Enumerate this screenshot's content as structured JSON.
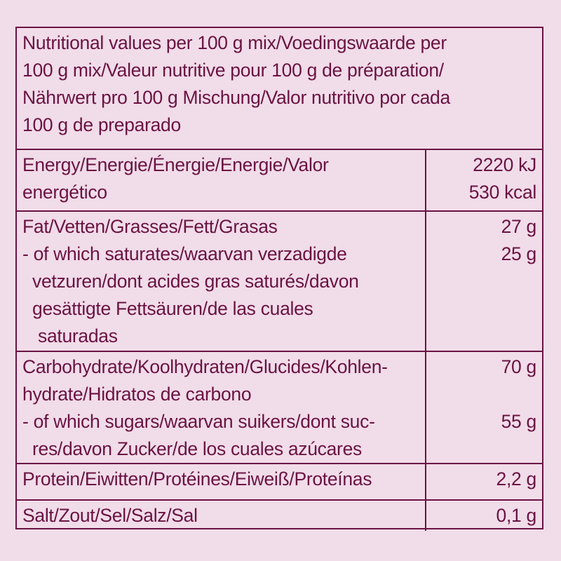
{
  "header": {
    "lines": [
      "Nutritional values per 100 g mix/Voedingswaarde per",
      "100 g mix/Valeur nutritive pour 100 g de préparation/",
      "Nährwert pro 100 g Mischung/Valor nutritivo por cada",
      "100 g de preparado"
    ]
  },
  "rows": [
    {
      "label": [
        "Energy/Energie/Énergie/Energie/Valor",
        "energético"
      ],
      "values": [
        "2220 kJ",
        "530 kcal"
      ]
    },
    {
      "label": [
        "Fat/Vetten/Grasses/Fett/Grasas",
        "- of which saturates/waarvan verzadigde",
        "vetzuren/dont acides gras saturés/davon",
        "gesättigte Fettsäuren/de las cuales",
        "saturadas"
      ],
      "values": [
        "27 g",
        "25 g"
      ]
    },
    {
      "label": [
        "Carbohydrate/Koolhydraten/Glucides/Kohlen-",
        "hydrate/Hidratos de carbono",
        "- of which sugars/waarvan suikers/dont suc-",
        "res/davon Zucker/de los cuales azúcares"
      ],
      "values": [
        "70 g",
        "55 g"
      ]
    },
    {
      "label": [
        "Protein/Eiwitten/Protéines/Eiweiß/Proteínas"
      ],
      "values": [
        "2,2 g"
      ]
    },
    {
      "label": [
        "Salt/Zout/Sel/Salz/Sal"
      ],
      "values": [
        "0,1 g"
      ]
    }
  ],
  "colors": {
    "text": "#6a1342",
    "background": "#f1dce9"
  }
}
